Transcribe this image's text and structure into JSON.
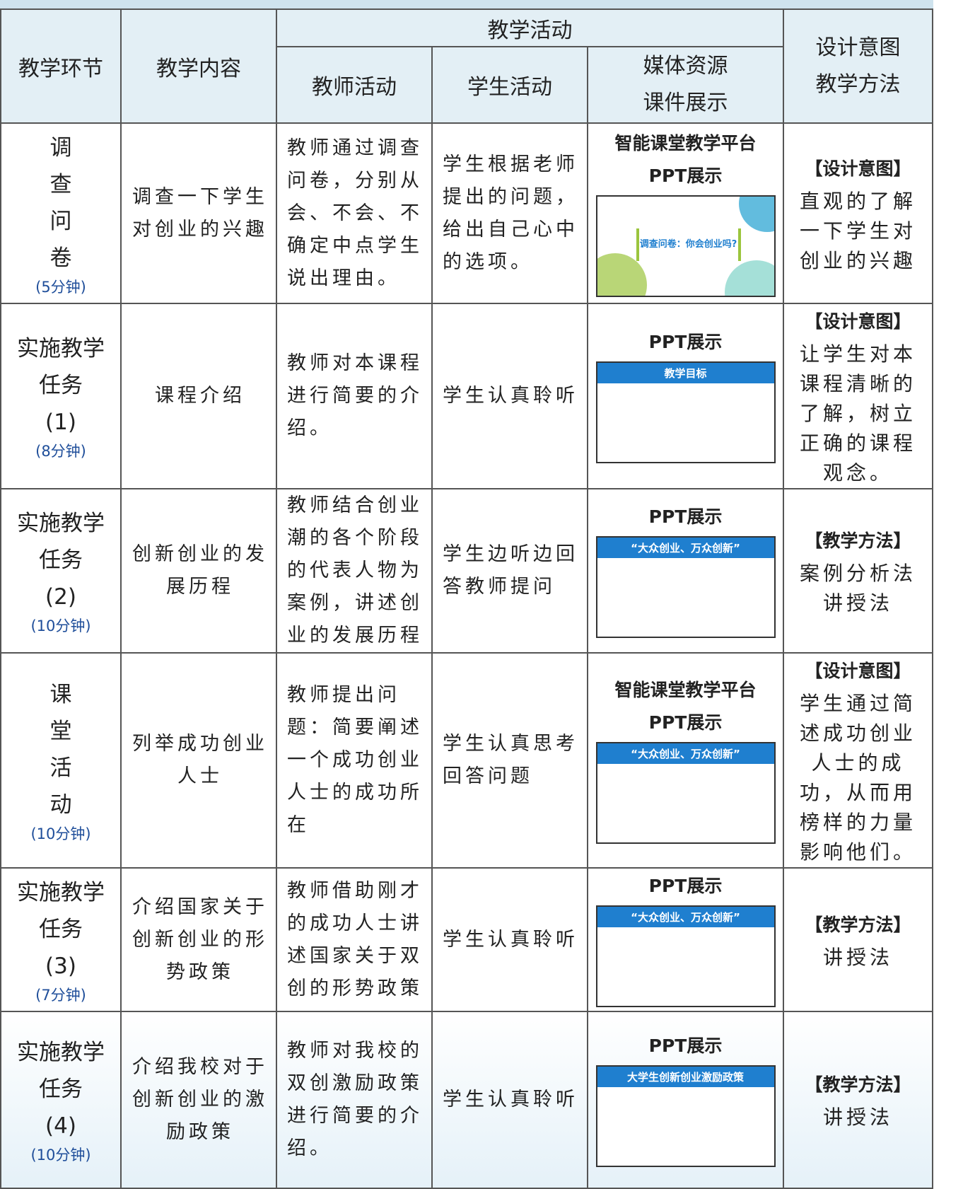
{
  "columns": {
    "stage": "教学环节",
    "content": "教学内容",
    "activity": "教学活动",
    "teacher": "教师活动",
    "student": "学生活动",
    "media": [
      "媒体资源",
      "课件展示"
    ],
    "intent": [
      "设计意图",
      "教学方法"
    ]
  },
  "rows": [
    {
      "stage": [
        "调",
        "查",
        "问",
        "卷"
      ],
      "time": "(5分钟)",
      "content": "调查一下学生对创业的兴趣",
      "teacher": "教师通过调查问卷，分别从会、不会、不确定中点学生说出理由。",
      "student": "学生根据老师提出的问题，给出自己心中的选项。",
      "media": [
        "智能课堂教学平台",
        "PPT展示"
      ],
      "slide": "调查问卷：你会创业吗?",
      "intent_label": "【设计意图】",
      "intent": [
        "直观的了解一下学生对创业的兴趣"
      ]
    },
    {
      "stage": [
        "实施教学",
        "任务",
        "(1)"
      ],
      "time": "(8分钟)",
      "content": "课程介绍",
      "teacher": "教师对本课程进行简要的介绍。",
      "student": "学生认真聆听",
      "media": [
        "PPT展示"
      ],
      "slide": "教学目标",
      "intent_label": "【设计意图】",
      "intent": [
        "让学生对本课程清晰的了解，树立正确的课程观念。"
      ]
    },
    {
      "stage": [
        "实施教学",
        "任务",
        "(2)"
      ],
      "time": "(10分钟)",
      "content": "创新创业的发展历程",
      "teacher": "教师结合创业潮的各个阶段的代表人物为案例，讲述创业的发展历程",
      "student": "学生边听边回答教师提问",
      "media": [
        "PPT展示"
      ],
      "slide": "“大众创业、万众创新”",
      "intent_label": "【教学方法】",
      "intent": [
        "案例分析法",
        "讲授法"
      ]
    },
    {
      "stage": [
        "课",
        "堂",
        "活",
        "动"
      ],
      "time": "(10分钟)",
      "content": "列举成功创业人士",
      "teacher": "教师提出问题：简要阐述一个成功创业人士的成功所在",
      "student": "学生认真思考回答问题",
      "media": [
        "智能课堂教学平台",
        "PPT展示"
      ],
      "slide": "“大众创业、万众创新”",
      "intent_label": "【设计意图】",
      "intent": [
        "学生通过简述成功创业人士的成功，从而用榜样的力量影响他们。"
      ]
    },
    {
      "stage": [
        "实施教学",
        "任务",
        "(3)"
      ],
      "time": "(7分钟)",
      "content": "介绍国家关于创新创业的形势政策",
      "teacher": "教师借助刚才的成功人士讲述国家关于双创的形势政策",
      "student": "学生认真聆听",
      "media": [
        "PPT展示"
      ],
      "slide": "“大众创业、万众创新”",
      "intent_label": "【教学方法】",
      "intent": [
        "讲授法"
      ]
    },
    {
      "stage": [
        "实施教学",
        "任务",
        "(4)"
      ],
      "time": "(10分钟)",
      "content": "介绍我校对于创新创业的激励政策",
      "teacher": "教师对我校的双创激励政策进行简要的介绍。",
      "student": "学生认真聆听",
      "media": [
        "PPT展示"
      ],
      "slide": "大学生创新创业激励政策",
      "intent_label": "【教学方法】",
      "intent": [
        "讲授法"
      ]
    }
  ]
}
